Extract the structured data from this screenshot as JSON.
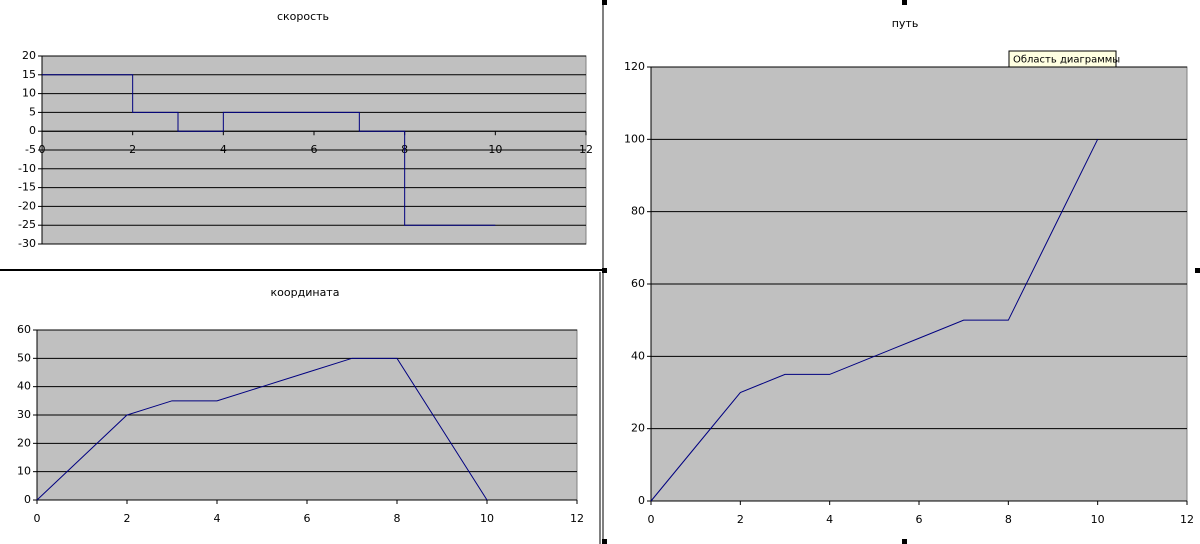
{
  "chart_data": [
    {
      "type": "line",
      "title": "скорость",
      "x": [
        0,
        2,
        2,
        3,
        3,
        4,
        4,
        7,
        7,
        8,
        8,
        10
      ],
      "values": [
        15,
        15,
        5,
        5,
        0,
        0,
        5,
        5,
        0,
        0,
        -25,
        -25
      ],
      "color": "#000080",
      "xlim": [
        0,
        12
      ],
      "xticks": [
        0,
        2,
        4,
        6,
        8,
        10,
        12
      ],
      "ylim": [
        -30,
        20
      ],
      "yticks": [
        -30,
        -25,
        -20,
        -15,
        -10,
        -5,
        0,
        5,
        10,
        15,
        20
      ],
      "grid": true
    },
    {
      "type": "line",
      "title": "координата",
      "x": [
        0,
        1,
        2,
        3,
        4,
        5,
        6,
        7,
        8,
        9,
        10
      ],
      "values": [
        0,
        15,
        30,
        35,
        35,
        40,
        45,
        50,
        50,
        25,
        0
      ],
      "color": "#000080",
      "xlim": [
        0,
        12
      ],
      "xticks": [
        0,
        2,
        4,
        6,
        8,
        10,
        12
      ],
      "ylim": [
        0,
        60
      ],
      "yticks": [
        0,
        10,
        20,
        30,
        40,
        50,
        60
      ],
      "grid": true
    },
    {
      "type": "line",
      "title": "путь",
      "x": [
        0,
        1,
        2,
        3,
        4,
        5,
        6,
        7,
        8,
        9,
        10
      ],
      "values": [
        0,
        15,
        30,
        35,
        35,
        40,
        45,
        50,
        50,
        75,
        100
      ],
      "color": "#000080",
      "xlim": [
        0,
        12
      ],
      "xticks": [
        0,
        2,
        4,
        6,
        8,
        10,
        12
      ],
      "ylim": [
        0,
        120
      ],
      "yticks": [
        0,
        20,
        40,
        60,
        80,
        100,
        120
      ],
      "grid": true
    }
  ],
  "tooltip": "Область диаграммы"
}
